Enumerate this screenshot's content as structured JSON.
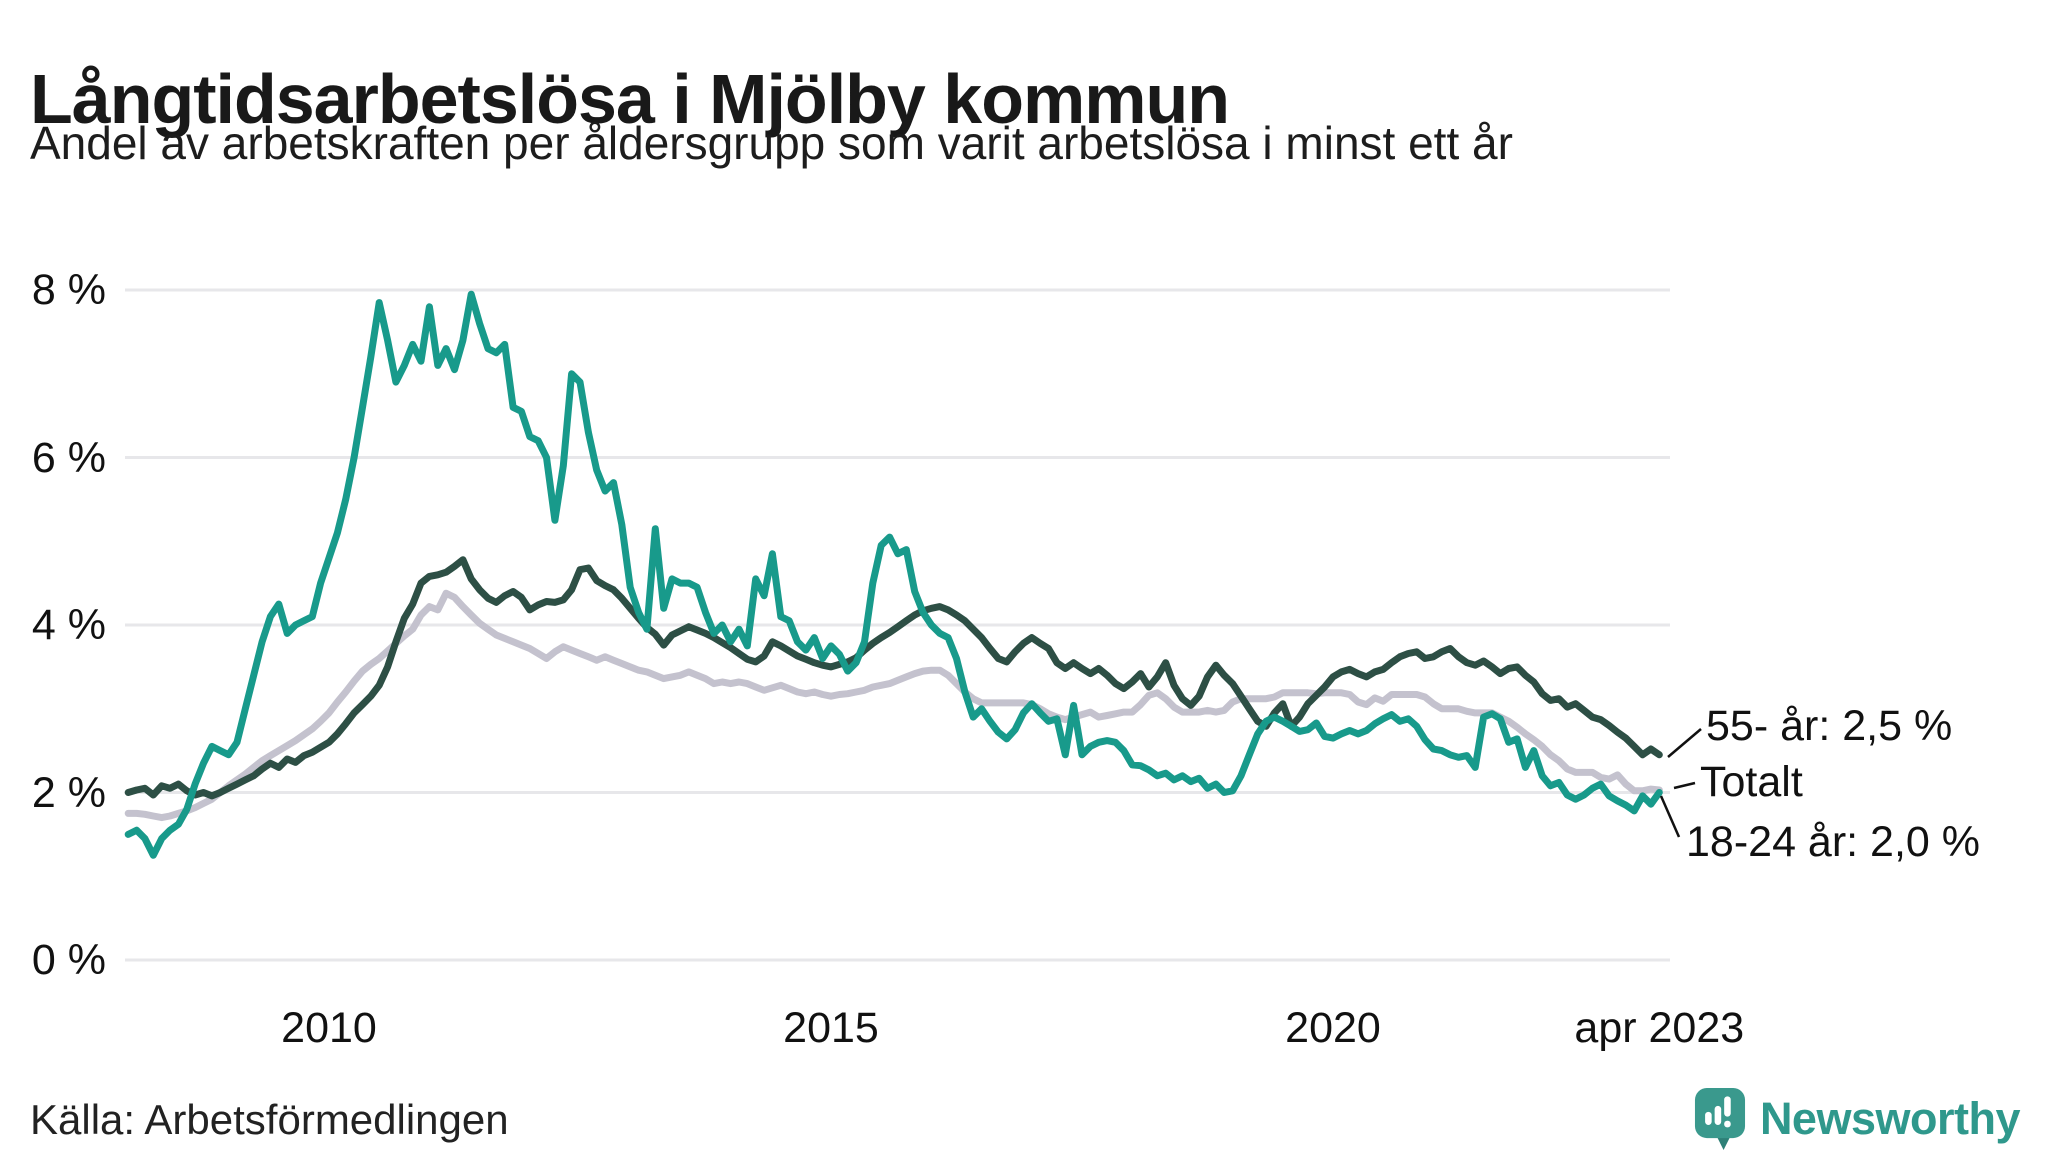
{
  "header": {
    "title": "Långtidsarbetslösa i Mjölby kommun",
    "subtitle": "Andel av arbetskraften per åldersgrupp som varit arbetslösa i minst ett år"
  },
  "footer": {
    "source": "Källa: Arbetsförmedlingen",
    "brand": "Newsworthy"
  },
  "colors": {
    "series_18_24": "#189a8b",
    "series_55": "#2d4f45",
    "series_total": "#c4c2ce",
    "grid": "#e7e7ea",
    "text": "#111111",
    "brand": "#2f988c",
    "brand_icon": "#3a998d",
    "brand_icon_tail": "#2e8077"
  },
  "annotations": [
    {
      "id": "ann-55",
      "text": "55- år: 2,5 %"
    },
    {
      "id": "ann-totalt",
      "text": "Totalt"
    },
    {
      "id": "ann-18-24",
      "text": "18-24 år: 2,0 %"
    }
  ],
  "chart_data": {
    "type": "line",
    "title": "Långtidsarbetslösa i Mjölby kommun",
    "subtitle": "Andel av arbetskraften per åldersgrupp som varit arbetslösa i minst ett år",
    "x_unit": "monthly, decimal years, Jan 2008 – Apr 2023",
    "xlim": [
      2008.0,
      2023.25
    ],
    "ylim": [
      0,
      8
    ],
    "grid": true,
    "legend_position": "right-annotations",
    "y_ticks": [
      {
        "label": "8 %",
        "value": 8
      },
      {
        "label": "6 %",
        "value": 6
      },
      {
        "label": "4 %",
        "value": 4
      },
      {
        "label": "2 %",
        "value": 2
      },
      {
        "label": "0 %",
        "value": 0
      }
    ],
    "x_ticks": [
      {
        "label": "2010",
        "year": 2010
      },
      {
        "label": "2015",
        "year": 2015
      },
      {
        "label": "2020",
        "year": 2020
      },
      {
        "label": "apr 2023",
        "year": 2023.25
      }
    ],
    "start_year": 2008,
    "points_per_year": 12,
    "series": [
      {
        "name": "Totalt",
        "color": "#c4c2ce",
        "end_label": "Totalt",
        "values": [
          1.75,
          1.75,
          1.74,
          1.72,
          1.7,
          1.72,
          1.75,
          1.78,
          1.82,
          1.87,
          1.92,
          2.0,
          2.08,
          2.15,
          2.22,
          2.3,
          2.38,
          2.44,
          2.5,
          2.56,
          2.62,
          2.69,
          2.76,
          2.85,
          2.95,
          3.08,
          3.2,
          3.33,
          3.45,
          3.53,
          3.6,
          3.69,
          3.78,
          3.87,
          3.95,
          4.12,
          4.22,
          4.18,
          4.38,
          4.33,
          4.22,
          4.12,
          4.02,
          3.95,
          3.88,
          3.84,
          3.8,
          3.76,
          3.72,
          3.66,
          3.6,
          3.68,
          3.74,
          3.7,
          3.66,
          3.62,
          3.58,
          3.62,
          3.58,
          3.54,
          3.5,
          3.46,
          3.44,
          3.4,
          3.36,
          3.38,
          3.4,
          3.44,
          3.4,
          3.36,
          3.3,
          3.32,
          3.3,
          3.32,
          3.3,
          3.26,
          3.22,
          3.25,
          3.28,
          3.24,
          3.2,
          3.18,
          3.2,
          3.17,
          3.15,
          3.17,
          3.18,
          3.2,
          3.22,
          3.26,
          3.28,
          3.3,
          3.34,
          3.38,
          3.42,
          3.45,
          3.46,
          3.46,
          3.4,
          3.3,
          3.2,
          3.12,
          3.07,
          3.07,
          3.07,
          3.07,
          3.07,
          3.07,
          3.05,
          3.0,
          2.94,
          2.9,
          2.87,
          2.9,
          2.93,
          2.96,
          2.9,
          2.92,
          2.94,
          2.96,
          2.96,
          3.05,
          3.16,
          3.19,
          3.12,
          3.02,
          2.96,
          2.96,
          2.96,
          2.98,
          2.96,
          2.98,
          3.08,
          3.12,
          3.12,
          3.12,
          3.12,
          3.14,
          3.19,
          3.19,
          3.19,
          3.19,
          3.18,
          3.19,
          3.19,
          3.19,
          3.17,
          3.08,
          3.05,
          3.13,
          3.09,
          3.17,
          3.17,
          3.17,
          3.17,
          3.14,
          3.06,
          3.0,
          3.0,
          3.0,
          2.97,
          2.95,
          2.95,
          2.95,
          2.9,
          2.85,
          2.78,
          2.7,
          2.63,
          2.55,
          2.45,
          2.38,
          2.28,
          2.24,
          2.24,
          2.24,
          2.18,
          2.16,
          2.21,
          2.1,
          2.02,
          2.02,
          2.04,
          2.03
        ]
      },
      {
        "name": "55- år",
        "color": "#2d4f45",
        "end_label": "55- år: 2,5 %",
        "end_value_label": "2,5 %",
        "values": [
          2.0,
          2.03,
          2.05,
          1.97,
          2.08,
          2.05,
          2.1,
          2.02,
          1.97,
          2.0,
          1.96,
          2.0,
          2.05,
          2.1,
          2.15,
          2.2,
          2.28,
          2.35,
          2.3,
          2.4,
          2.36,
          2.44,
          2.48,
          2.54,
          2.6,
          2.7,
          2.82,
          2.95,
          3.05,
          3.15,
          3.28,
          3.5,
          3.8,
          4.08,
          4.25,
          4.5,
          4.58,
          4.6,
          4.63,
          4.7,
          4.78,
          4.55,
          4.42,
          4.32,
          4.27,
          4.35,
          4.4,
          4.33,
          4.18,
          4.24,
          4.28,
          4.27,
          4.3,
          4.42,
          4.66,
          4.68,
          4.53,
          4.47,
          4.42,
          4.32,
          4.2,
          4.08,
          3.97,
          3.89,
          3.76,
          3.88,
          3.93,
          3.98,
          3.94,
          3.9,
          3.85,
          3.79,
          3.73,
          3.66,
          3.59,
          3.56,
          3.63,
          3.8,
          3.75,
          3.69,
          3.63,
          3.59,
          3.55,
          3.52,
          3.5,
          3.53,
          3.56,
          3.61,
          3.7,
          3.78,
          3.85,
          3.91,
          3.98,
          4.05,
          4.12,
          4.17,
          4.2,
          4.22,
          4.18,
          4.12,
          4.05,
          3.95,
          3.85,
          3.72,
          3.6,
          3.56,
          3.68,
          3.78,
          3.85,
          3.78,
          3.72,
          3.55,
          3.48,
          3.55,
          3.48,
          3.42,
          3.48,
          3.4,
          3.3,
          3.24,
          3.32,
          3.42,
          3.26,
          3.38,
          3.55,
          3.28,
          3.12,
          3.04,
          3.15,
          3.38,
          3.52,
          3.4,
          3.3,
          3.15,
          3.0,
          2.85,
          2.79,
          2.95,
          3.06,
          2.79,
          2.9,
          3.06,
          3.16,
          3.26,
          3.38,
          3.44,
          3.47,
          3.42,
          3.38,
          3.44,
          3.47,
          3.55,
          3.62,
          3.66,
          3.68,
          3.6,
          3.62,
          3.68,
          3.72,
          3.62,
          3.55,
          3.52,
          3.57,
          3.5,
          3.42,
          3.48,
          3.5,
          3.4,
          3.32,
          3.18,
          3.1,
          3.12,
          3.02,
          3.06,
          2.98,
          2.9,
          2.87,
          2.8,
          2.72,
          2.65,
          2.55,
          2.45,
          2.52,
          2.45
        ]
      },
      {
        "name": "18-24 år",
        "color": "#189a8b",
        "end_label": "18-24 år: 2,0 %",
        "end_value_label": "2,0 %",
        "values": [
          1.5,
          1.55,
          1.45,
          1.25,
          1.45,
          1.55,
          1.62,
          1.8,
          2.1,
          2.35,
          2.55,
          2.5,
          2.45,
          2.6,
          3.0,
          3.4,
          3.8,
          4.1,
          4.25,
          3.9,
          4.0,
          4.05,
          4.1,
          4.5,
          4.8,
          5.1,
          5.5,
          6.0,
          6.6,
          7.2,
          7.85,
          7.4,
          6.9,
          7.1,
          7.35,
          7.15,
          7.8,
          7.1,
          7.3,
          7.05,
          7.4,
          7.95,
          7.6,
          7.3,
          7.25,
          7.35,
          6.6,
          6.55,
          6.25,
          6.2,
          6.0,
          5.25,
          5.9,
          7.0,
          6.9,
          6.3,
          5.85,
          5.6,
          5.7,
          5.2,
          4.45,
          4.15,
          3.95,
          5.15,
          4.2,
          4.55,
          4.5,
          4.5,
          4.45,
          4.15,
          3.9,
          4.0,
          3.8,
          3.95,
          3.75,
          4.55,
          4.35,
          4.85,
          4.1,
          4.05,
          3.8,
          3.7,
          3.85,
          3.6,
          3.75,
          3.65,
          3.45,
          3.55,
          3.8,
          4.5,
          4.95,
          5.05,
          4.85,
          4.9,
          4.4,
          4.15,
          4.0,
          3.9,
          3.85,
          3.6,
          3.2,
          2.9,
          3.0,
          2.85,
          2.72,
          2.64,
          2.75,
          2.95,
          3.06,
          2.95,
          2.85,
          2.88,
          2.45,
          3.04,
          2.45,
          2.55,
          2.6,
          2.62,
          2.6,
          2.5,
          2.33,
          2.32,
          2.27,
          2.2,
          2.23,
          2.15,
          2.2,
          2.13,
          2.17,
          2.05,
          2.1,
          2.0,
          2.02,
          2.2,
          2.45,
          2.7,
          2.85,
          2.9,
          2.85,
          2.79,
          2.73,
          2.75,
          2.83,
          2.67,
          2.65,
          2.7,
          2.74,
          2.7,
          2.74,
          2.82,
          2.88,
          2.93,
          2.85,
          2.88,
          2.79,
          2.63,
          2.52,
          2.5,
          2.45,
          2.42,
          2.44,
          2.3,
          2.9,
          2.94,
          2.88,
          2.6,
          2.64,
          2.3,
          2.5,
          2.2,
          2.08,
          2.12,
          1.97,
          1.92,
          1.97,
          2.05,
          2.1,
          1.96,
          1.9,
          1.85,
          1.78,
          1.96,
          1.86,
          2.0
        ]
      }
    ]
  }
}
